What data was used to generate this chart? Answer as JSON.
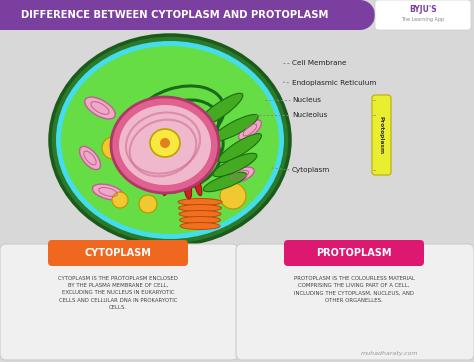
{
  "title": "DIFFERENCE BETWEEN CYTOPLASM AND PROTOPLASM",
  "title_bg": "#7b3fa0",
  "title_color": "#ffffff",
  "bg_color": "#d8d8d8",
  "cell_dark_green": "#2a7a2a",
  "cell_mid_green": "#44bb44",
  "cell_bright_green": "#66dd44",
  "cell_cyan": "#44ddee",
  "nucleus_pink": "#e06090",
  "nucleus_light": "#f0b8cc",
  "nucleolus_yellow": "#f8e840",
  "nucleolus_dot": "#e06010",
  "labels": [
    "Cell Membrane",
    "Endoplasmic Reticulum",
    "Nucleus",
    "Nucleolus",
    "Cytoplasm"
  ],
  "label_line_color": "#888888",
  "label_text_color": "#333333",
  "protoplasm_label": "Protoplasm",
  "protoplasm_label_bg": "#eaee30",
  "cytoplasm_title": "CYTOPLASM",
  "cytoplasm_title_color": "#ffffff",
  "cytoplasm_title_bg": "#f06820",
  "cytoplasm_text": "CYTOPLASM IS THE PROTOPLASM ENCLOSED\nBY THE PLASMA MEMBRANE OF CELL,\nEXCLUDING THE NUCLEUS IN EUKARYOTIC\nCELLS AND CELLULAR DNA IN PROKARYOTIC\nCELLS.",
  "protoplasm_title": "PROTOPLASM",
  "protoplasm_title_color": "#ffffff",
  "protoplasm_title_bg": "#dd1870",
  "protoplasm_text": "PROTOPLASM IS THE COLOURLESS MATERIAL\nCOMPRISING THE LIVING PART OF A CELL,\nINCLUDING THE CYTOPLASM, NUCLEUS, AND\nOTHER ORGANELLES.",
  "box_bg": "#f0f0f0",
  "text_color": "#444444",
  "watermark": "muhadharaty.com",
  "byju_bg": "#7b3fa0"
}
